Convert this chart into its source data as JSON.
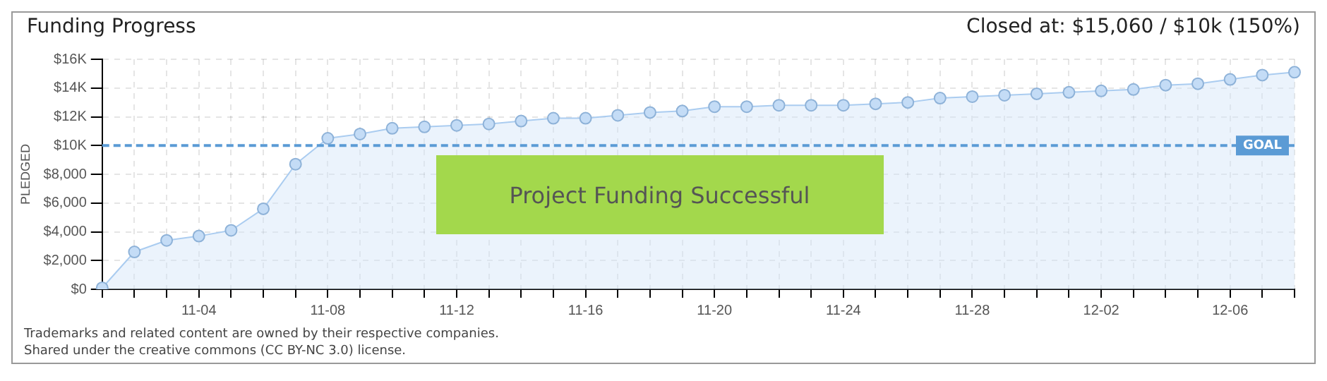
{
  "chart_data": {
    "type": "area",
    "title": "Funding Progress",
    "subtitle": "Closed at: $15,060 / $10k (150%)",
    "ylabel": "PLEDGED",
    "categories": [
      null,
      null,
      null,
      "11-04",
      null,
      null,
      null,
      "11-08",
      null,
      null,
      null,
      "11-12",
      null,
      null,
      null,
      "11-16",
      null,
      null,
      null,
      "11-20",
      null,
      null,
      null,
      "11-24",
      null,
      null,
      null,
      "11-28",
      null,
      null,
      null,
      "12-02",
      null,
      null,
      null,
      "12-06",
      null,
      null
    ],
    "series": [
      {
        "color": "#aaccf0",
        "values": [
          100,
          2600,
          3400,
          3700,
          4100,
          5600,
          8700,
          10500,
          10800,
          11200,
          11300,
          11400,
          11500,
          11700,
          11900,
          11900,
          12100,
          12300,
          12400,
          12700,
          12700,
          12800,
          12800,
          12800,
          12900,
          13000,
          13300,
          13400,
          13500,
          13600,
          13700,
          13800,
          13900,
          14200,
          14300,
          14600,
          14900,
          15100
        ]
      }
    ],
    "ylim": [
      0,
      16000
    ],
    "yticks": [
      {
        "value": 0,
        "label": "$0"
      },
      {
        "value": 2000,
        "label": "$2,000"
      },
      {
        "value": 4000,
        "label": "$4,000"
      },
      {
        "value": 6000,
        "label": "$6,000"
      },
      {
        "value": 8000,
        "label": "$8,000"
      },
      {
        "value": 10000,
        "label": "$10K"
      },
      {
        "value": 12000,
        "label": "$12K"
      },
      {
        "value": 14000,
        "label": "$14K"
      },
      {
        "value": 16000,
        "label": "$16K"
      }
    ],
    "ref_lines": [
      {
        "axis": "y",
        "value": 10000,
        "label": "GOAL",
        "color": "#5b9bd5",
        "line_style": "dashed"
      }
    ],
    "annotations": [
      "Project Funding Successful",
      "Trademarks and related content are owned by their respective companies.",
      "Shared under the creative commons (CC BY-NC 3.0) license."
    ],
    "grid": true,
    "legend": false,
    "marker": "circle",
    "line_style": "solid"
  }
}
